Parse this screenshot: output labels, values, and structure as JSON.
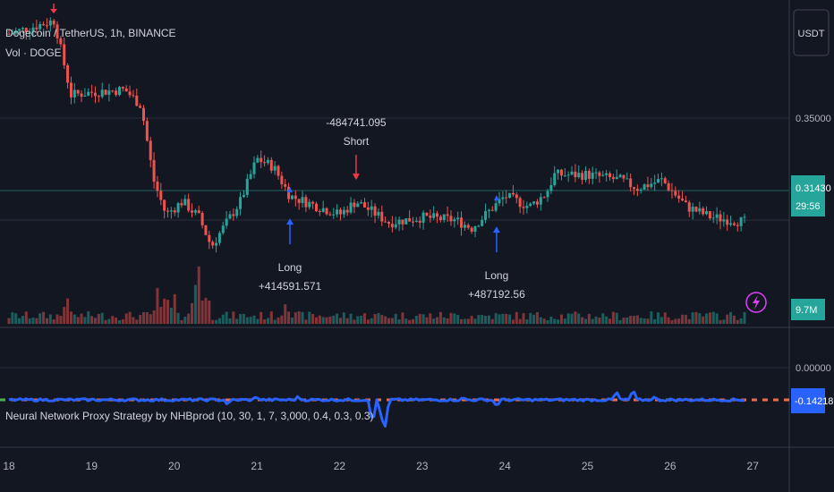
{
  "header": {
    "symbol_title": "Dogecoin / TetherUS, 1h, BINANCE",
    "volume_legend": "Vol · DOGE",
    "currency_button": "USDT"
  },
  "price_axis": {
    "label_035": "0.35000",
    "last_price": "0.31430",
    "countdown": "29:56",
    "volume_last": "9.7M"
  },
  "indicator": {
    "legend": "Neural Network Proxy Strategy by NHBprod (10, 30, 1, 7, 3,000, 0.4, 0.3, 0.3)",
    "zero_label": "0.00000",
    "last_value": "-0.14218"
  },
  "trades": [
    {
      "side": "Short",
      "pnl": "-484741.095",
      "day": 22.2
    },
    {
      "side": "Long",
      "pnl": "+414591.571",
      "day": 21.4
    },
    {
      "side": "Long",
      "pnl": "+487192.56",
      "day": 23.9
    }
  ],
  "colors": {
    "background": "#131722",
    "up": "#26a69a",
    "down": "#ef5350",
    "indicator_line": "#2962ff",
    "long_marker": "#2962ff",
    "short_marker": "#f23645"
  },
  "icons": {
    "alert": "lightning-icon"
  },
  "chart_data": {
    "type": "candlestick",
    "x_ticks": [
      "18",
      "19",
      "20",
      "21",
      "22",
      "23",
      "24",
      "25",
      "26",
      "27"
    ],
    "x_ticks_days": [
      18,
      19,
      20,
      21,
      22,
      23,
      24,
      25,
      26,
      27
    ],
    "y_labels": [
      "0.35000"
    ],
    "x_range": [
      18,
      27.5
    ],
    "y_range": [
      0.28,
      0.395
    ],
    "price_path": [
      {
        "t": 18.0,
        "p": 0.385
      },
      {
        "t": 18.55,
        "p": 0.39
      },
      {
        "t": 18.75,
        "p": 0.362
      },
      {
        "t": 19.0,
        "p": 0.363
      },
      {
        "t": 19.4,
        "p": 0.364
      },
      {
        "t": 19.6,
        "p": 0.358
      },
      {
        "t": 19.75,
        "p": 0.33
      },
      {
        "t": 19.9,
        "p": 0.317
      },
      {
        "t": 20.1,
        "p": 0.322
      },
      {
        "t": 20.3,
        "p": 0.316
      },
      {
        "t": 20.45,
        "p": 0.305
      },
      {
        "t": 20.55,
        "p": 0.31
      },
      {
        "t": 20.8,
        "p": 0.322
      },
      {
        "t": 21.0,
        "p": 0.338
      },
      {
        "t": 21.2,
        "p": 0.335
      },
      {
        "t": 21.4,
        "p": 0.324
      },
      {
        "t": 22.0,
        "p": 0.317
      },
      {
        "t": 22.2,
        "p": 0.322
      },
      {
        "t": 22.6,
        "p": 0.314
      },
      {
        "t": 23.0,
        "p": 0.316
      },
      {
        "t": 23.4,
        "p": 0.315
      },
      {
        "t": 23.6,
        "p": 0.312
      },
      {
        "t": 23.8,
        "p": 0.318
      },
      {
        "t": 24.0,
        "p": 0.324
      },
      {
        "t": 24.3,
        "p": 0.32
      },
      {
        "t": 24.5,
        "p": 0.325
      },
      {
        "t": 24.6,
        "p": 0.332
      },
      {
        "t": 25.0,
        "p": 0.332
      },
      {
        "t": 25.4,
        "p": 0.33
      },
      {
        "t": 25.6,
        "p": 0.327
      },
      {
        "t": 25.9,
        "p": 0.33
      },
      {
        "t": 26.2,
        "p": 0.32
      },
      {
        "t": 26.5,
        "p": 0.316
      },
      {
        "t": 26.9,
        "p": 0.3143
      }
    ],
    "volume_spikes": [
      {
        "t": 18.7,
        "v": 0.45
      },
      {
        "t": 19.8,
        "v": 0.6
      },
      {
        "t": 19.9,
        "v": 0.55
      },
      {
        "t": 20.0,
        "v": 0.5
      },
      {
        "t": 20.25,
        "v": 0.7
      },
      {
        "t": 20.3,
        "v": 1.0
      },
      {
        "t": 20.4,
        "v": 0.55
      },
      {
        "t": 21.35,
        "v": 0.3
      }
    ],
    "indicator_dips": [
      {
        "t": 20.65,
        "v": -0.6
      },
      {
        "t": 21.0,
        "v": 0.4
      },
      {
        "t": 21.5,
        "v": 0.35
      },
      {
        "t": 22.4,
        "v": -3.2
      },
      {
        "t": 22.55,
        "v": -3.6
      },
      {
        "t": 22.5,
        "v": -1.8
      },
      {
        "t": 23.5,
        "v": 0.2
      },
      {
        "t": 23.9,
        "v": -0.8
      },
      {
        "t": 25.35,
        "v": 1.0
      },
      {
        "t": 25.55,
        "v": 1.2
      },
      {
        "t": 25.8,
        "v": 0.3
      }
    ]
  }
}
